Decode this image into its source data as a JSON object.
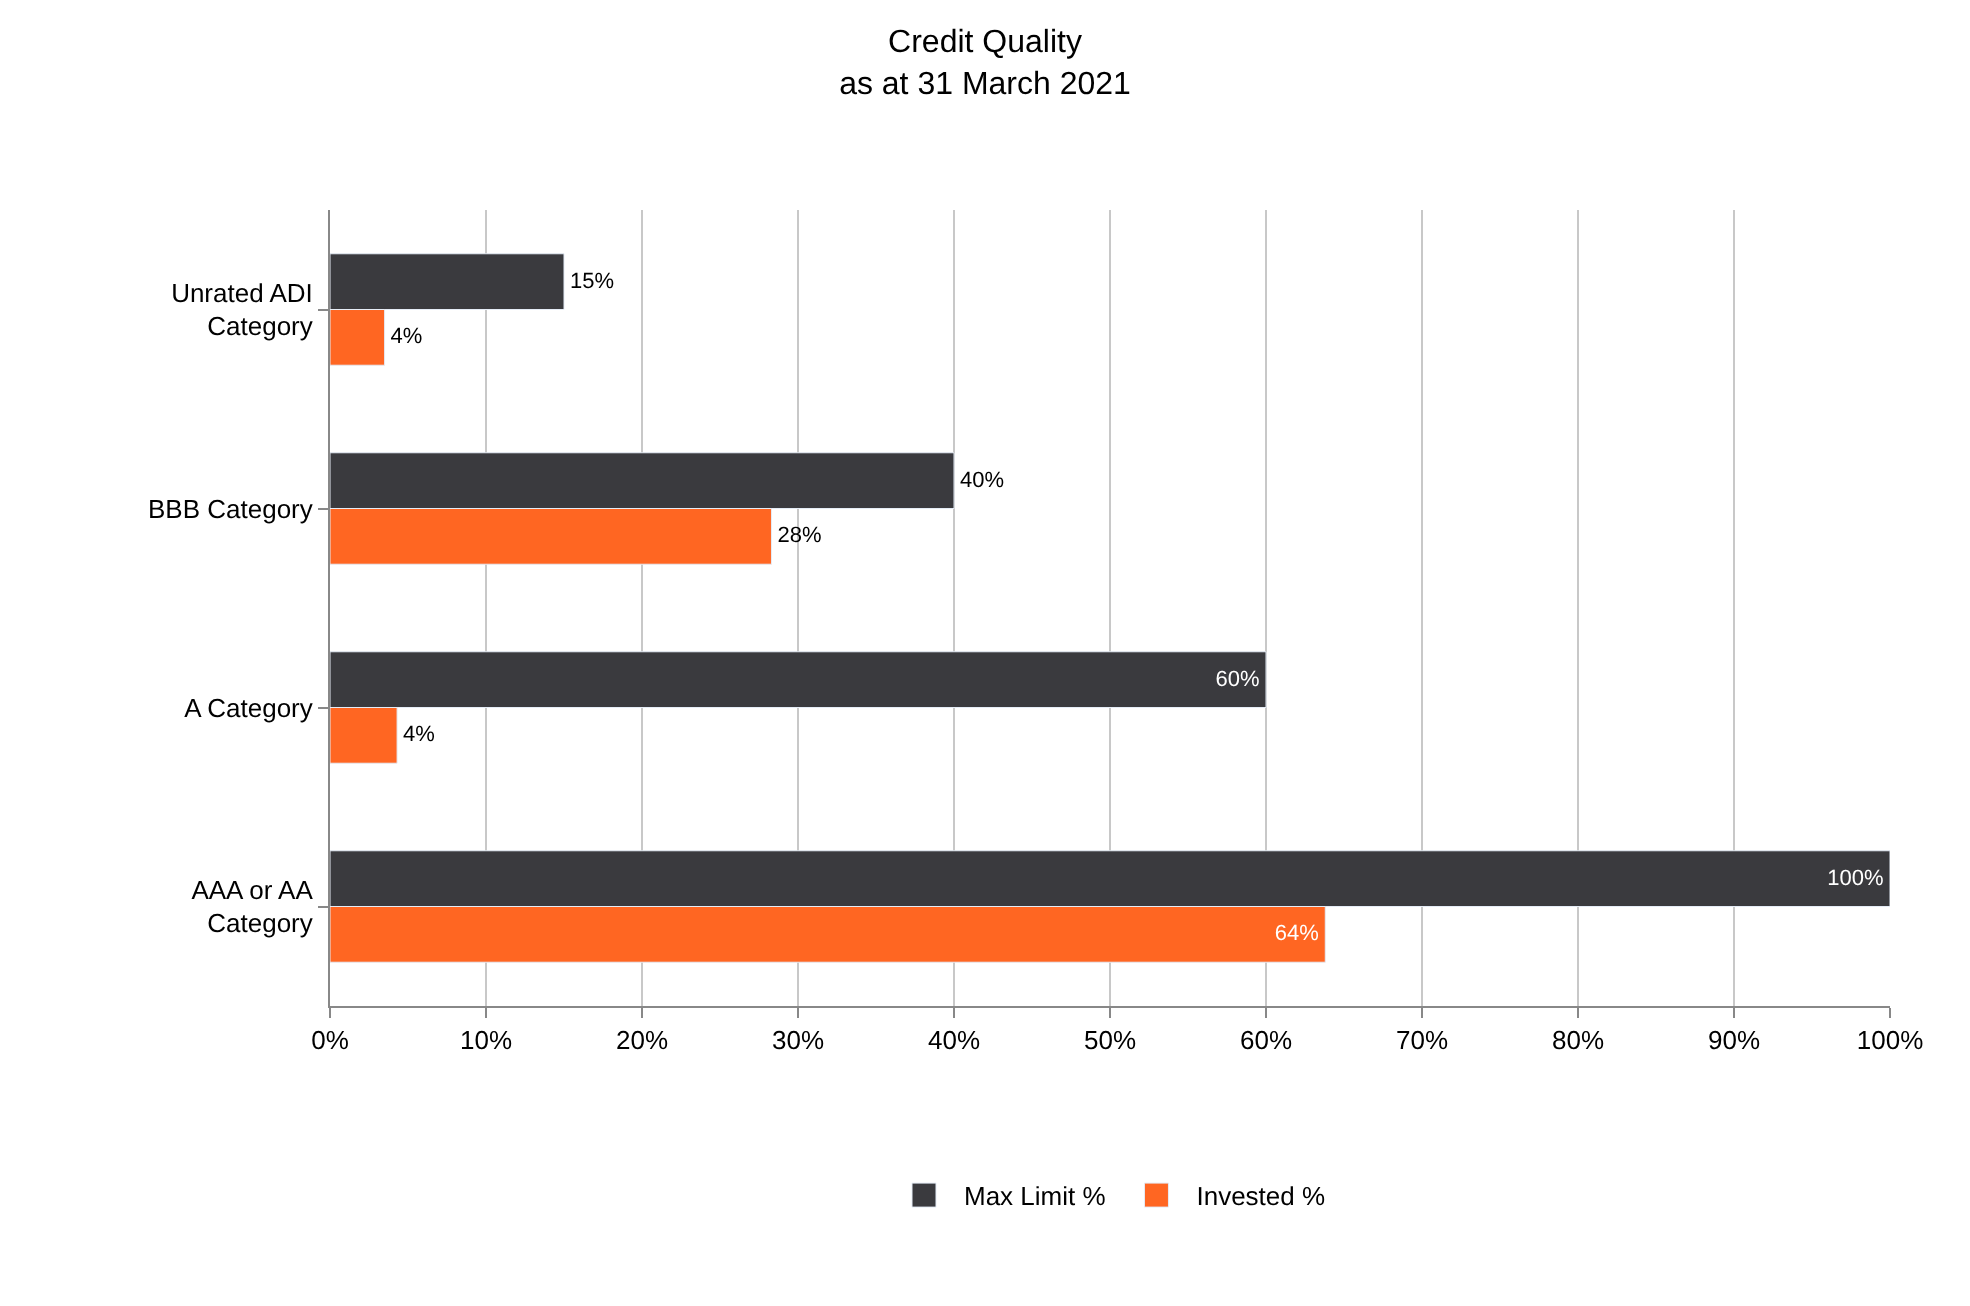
{
  "chart_data": {
    "type": "bar",
    "orientation": "horizontal",
    "title": "Credit Quality\nas at 31 March 2021",
    "categories": [
      "Unrated ADI Category",
      "BBB Category",
      "A Category",
      "AAA or AA Category"
    ],
    "series": [
      {
        "name": "Max Limit %",
        "color": "#3a3a3e",
        "values": [
          15,
          40,
          60,
          100
        ],
        "value_labels": [
          "15%",
          "40%",
          "60%",
          "100%"
        ]
      },
      {
        "name": "Invested %",
        "color": "#ff6622",
        "values": [
          3.5,
          28.3,
          4.3,
          63.8
        ],
        "value_labels": [
          "4%",
          "28%",
          "4%",
          "64%"
        ]
      }
    ],
    "xlim": [
      0,
      100
    ],
    "xticks": [
      {
        "value": 0,
        "label": "0%"
      },
      {
        "value": 10,
        "label": "10%"
      },
      {
        "value": 20,
        "label": "20%"
      },
      {
        "value": 30,
        "label": "30%"
      },
      {
        "value": 40,
        "label": "40%"
      },
      {
        "value": 50,
        "label": "50%"
      },
      {
        "value": 60,
        "label": "60%"
      },
      {
        "value": 70,
        "label": "70%"
      },
      {
        "value": 80,
        "label": "80%"
      },
      {
        "value": 90,
        "label": "90%"
      },
      {
        "value": 100,
        "label": "100%"
      }
    ],
    "grid": "x",
    "legend": "bottom"
  }
}
